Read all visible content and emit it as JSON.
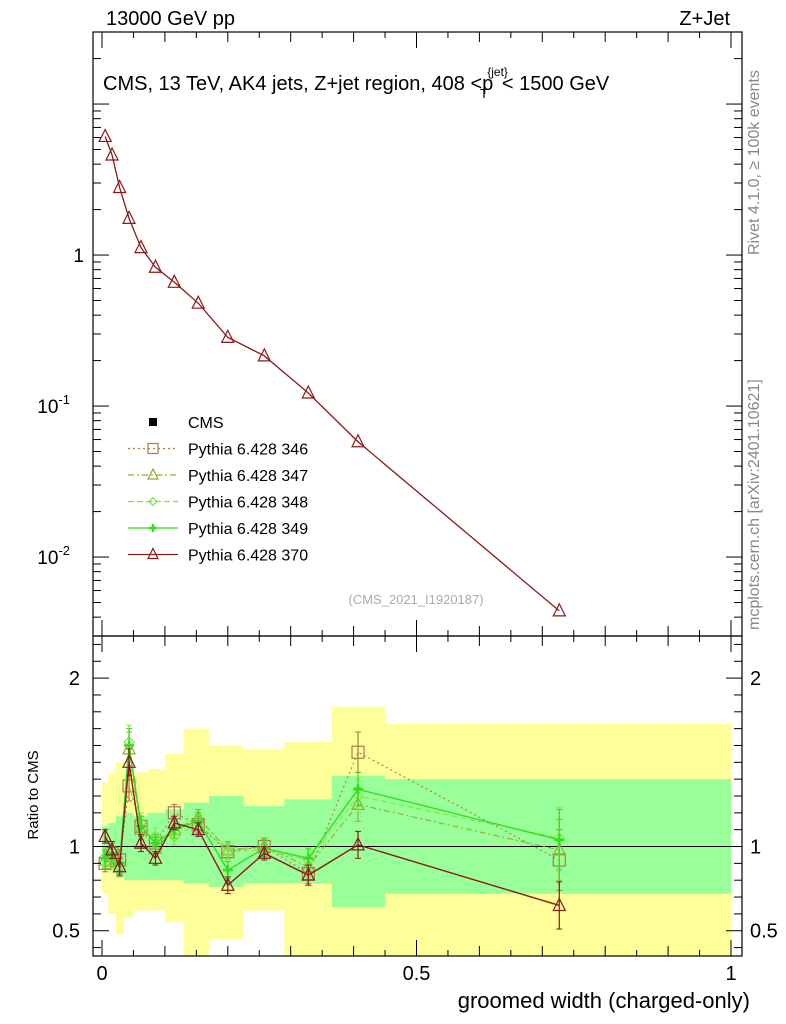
{
  "header": {
    "left": "13000 GeV pp",
    "right": "Z+Jet"
  },
  "side_labels": {
    "rivet": "Rivet 4.1.0, ≥ 100k events",
    "mcplots": "mcplots.cern.ch [arXiv:2401.10621]"
  },
  "chart_data": {
    "type": "line",
    "title": "CMS, 13 TeV, AK4 jets, Z+jet region, 408 <p_T^{jet}< 1500 GeV",
    "title_main": "CMS, 13 TeV, AK4 jets, Z+jet region, 408 <p",
    "title_sup": "{jet}",
    "title_sub": "T",
    "title_tail": "< 1500 GeV",
    "analysis_id": "(CMS_2021_I1920187)",
    "xlabel": "groomed width (charged-only)",
    "ylabel_ratio": "Ratio to CMS",
    "xlim": [
      0,
      1
    ],
    "xticks": [
      "0",
      "0.5",
      "1"
    ],
    "main_yscale": "log",
    "main_ylim": [
      0.003,
      30
    ],
    "main_yticks": [
      "10^{-2}",
      "10^{-1}",
      "1"
    ],
    "ratio_ylim": [
      0.35,
      2.25
    ],
    "ratio_yticks": [
      "0.5",
      "1",
      "2"
    ],
    "legend": [
      "CMS",
      "Pythia 6.428 346",
      "Pythia 6.428 347",
      "Pythia 6.428 348",
      "Pythia 6.428 349",
      "Pythia 6.428 370"
    ],
    "x": [
      0.005,
      0.016,
      0.028,
      0.043,
      0.062,
      0.085,
      0.115,
      0.153,
      0.2,
      0.258,
      0.328,
      0.407,
      0.727
    ],
    "main_series": {
      "name": "Pythia 6.428 370",
      "values": [
        6.1,
        4.6,
        2.8,
        1.75,
        1.12,
        0.83,
        0.66,
        0.48,
        0.285,
        0.215,
        0.122,
        0.058,
        0.0044
      ]
    },
    "ratio_series": [
      {
        "name": "Pythia 6.428 346",
        "color": "#a57c50",
        "dash": "2,3",
        "marker": "square",
        "values": [
          0.9,
          0.96,
          0.92,
          1.36,
          1.12,
          1.02,
          1.2,
          1.13,
          0.97,
          1.0,
          0.84,
          1.56,
          0.92
        ],
        "errors": [
          0.05,
          0.06,
          0.06,
          0.09,
          0.06,
          0.05,
          0.05,
          0.05,
          0.05,
          0.05,
          0.06,
          0.12,
          0.18
        ]
      },
      {
        "name": "Pythia 6.428 347",
        "color": "#9aa82f",
        "dash": "6,3,2,3",
        "marker": "triangle",
        "values": [
          0.92,
          0.94,
          0.88,
          1.58,
          1.1,
          0.99,
          1.1,
          1.17,
          0.98,
          1.0,
          0.88,
          1.25,
          0.98
        ],
        "errors": [
          0.05,
          0.06,
          0.06,
          0.1,
          0.06,
          0.05,
          0.05,
          0.05,
          0.05,
          0.05,
          0.06,
          0.1,
          0.18
        ]
      },
      {
        "name": "Pythia 6.428 348",
        "color": "#7fe83c",
        "dash": "6,3",
        "marker": "diamond",
        "values": [
          0.94,
          0.93,
          0.9,
          1.62,
          1.14,
          1.06,
          1.06,
          1.14,
          0.97,
          0.98,
          0.92,
          1.3,
          1.05
        ],
        "errors": [
          0.05,
          0.06,
          0.06,
          0.1,
          0.06,
          0.05,
          0.05,
          0.05,
          0.05,
          0.05,
          0.06,
          0.1,
          0.18
        ]
      },
      {
        "name": "Pythia 6.428 349",
        "color": "#33dd22",
        "dash": "",
        "marker": "cross",
        "values": [
          0.93,
          0.96,
          0.9,
          1.6,
          1.12,
          1.02,
          1.1,
          1.15,
          0.86,
          0.99,
          0.93,
          1.34,
          1.04
        ],
        "errors": [
          0.05,
          0.06,
          0.06,
          0.1,
          0.06,
          0.05,
          0.05,
          0.05,
          0.05,
          0.05,
          0.06,
          0.1,
          0.18
        ]
      },
      {
        "name": "Pythia 6.428 370",
        "color": "#8b1a1a",
        "dash": "",
        "marker": "triangle",
        "values": [
          1.06,
          0.98,
          0.88,
          1.5,
          1.02,
          0.93,
          1.14,
          1.1,
          0.77,
          0.96,
          0.83,
          1.01,
          0.65
        ],
        "errors": [
          0.04,
          0.05,
          0.05,
          0.08,
          0.05,
          0.04,
          0.04,
          0.04,
          0.05,
          0.04,
          0.06,
          0.08,
          0.14
        ]
      }
    ],
    "uncertainty_bands": {
      "edges": [
        0,
        0.01,
        0.022,
        0.035,
        0.05,
        0.072,
        0.1,
        0.13,
        0.17,
        0.225,
        0.29,
        0.365,
        0.45,
        1.0
      ],
      "inner_lo": [
        0.88,
        0.86,
        0.82,
        0.8,
        0.8,
        0.8,
        0.8,
        0.78,
        0.76,
        0.78,
        0.78,
        0.64,
        0.72
      ],
      "inner_hi": [
        1.12,
        1.14,
        1.18,
        1.2,
        1.18,
        1.2,
        1.22,
        1.26,
        1.3,
        1.24,
        1.28,
        1.42,
        1.4
      ],
      "outer_lo": [
        0.72,
        0.6,
        0.48,
        0.58,
        0.62,
        0.62,
        0.55,
        0.35,
        0.45,
        0.62,
        0.35,
        0.35,
        0.35
      ],
      "outer_hi": [
        1.38,
        1.44,
        1.5,
        1.45,
        1.44,
        1.46,
        1.55,
        1.7,
        1.6,
        1.58,
        1.62,
        1.83,
        1.73
      ],
      "inner_color": "#99ff99",
      "outer_color": "#ffff99"
    }
  }
}
